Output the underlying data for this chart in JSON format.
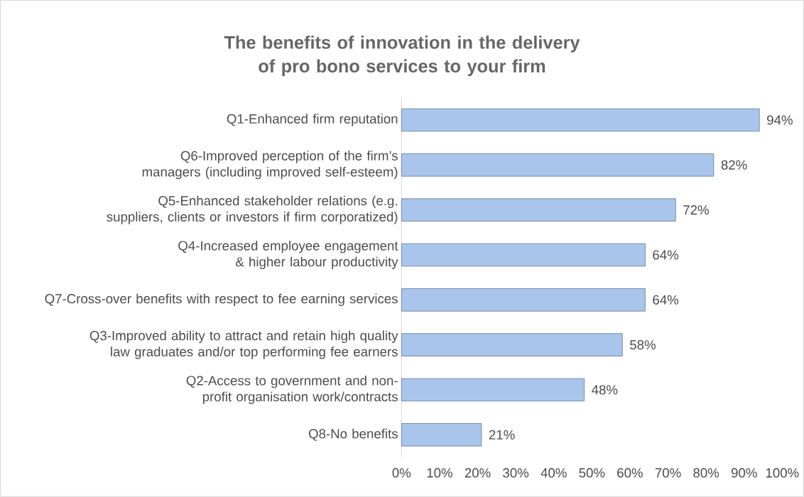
{
  "chart_data": {
    "type": "bar",
    "orientation": "horizontal",
    "title": "The benefits of innovation in the delivery of pro bono services to your firm",
    "categories": [
      "Q1-Enhanced firm reputation",
      "Q6-Improved perception of the firm’s managers (including improved self-esteem)",
      "Q5-Enhanced stakeholder relations (e.g. suppliers, clients or investors if firm corporatized)",
      "Q4-Increased employee engagement & higher labour productivity",
      "Q7-Cross-over benefits with respect to fee earning services",
      "Q3-Improved ability to attract and retain high quality law graduates and/or top performing fee earners",
      "Q2-Access to government and non-profit organisation work/contracts",
      "Q8-No benefits"
    ],
    "values": [
      94,
      82,
      72,
      64,
      64,
      58,
      48,
      21
    ],
    "value_labels": [
      "94%",
      "82%",
      "72%",
      "64%",
      "64%",
      "58%",
      "48%",
      "21%"
    ],
    "color": "#a9c5eb",
    "xlim": [
      0,
      100
    ],
    "xticks": [
      {
        "value": 0,
        "label": "0%"
      },
      {
        "value": 10,
        "label": "10%"
      },
      {
        "value": 20,
        "label": "20%"
      },
      {
        "value": 30,
        "label": "30%"
      },
      {
        "value": 40,
        "label": "40%"
      },
      {
        "value": 50,
        "label": "50%"
      },
      {
        "value": 60,
        "label": "60%"
      },
      {
        "value": 70,
        "label": "70%"
      },
      {
        "value": 80,
        "label": "80%"
      },
      {
        "value": 90,
        "label": "90%"
      },
      {
        "value": 100,
        "label": "100%"
      }
    ],
    "grid": false
  }
}
